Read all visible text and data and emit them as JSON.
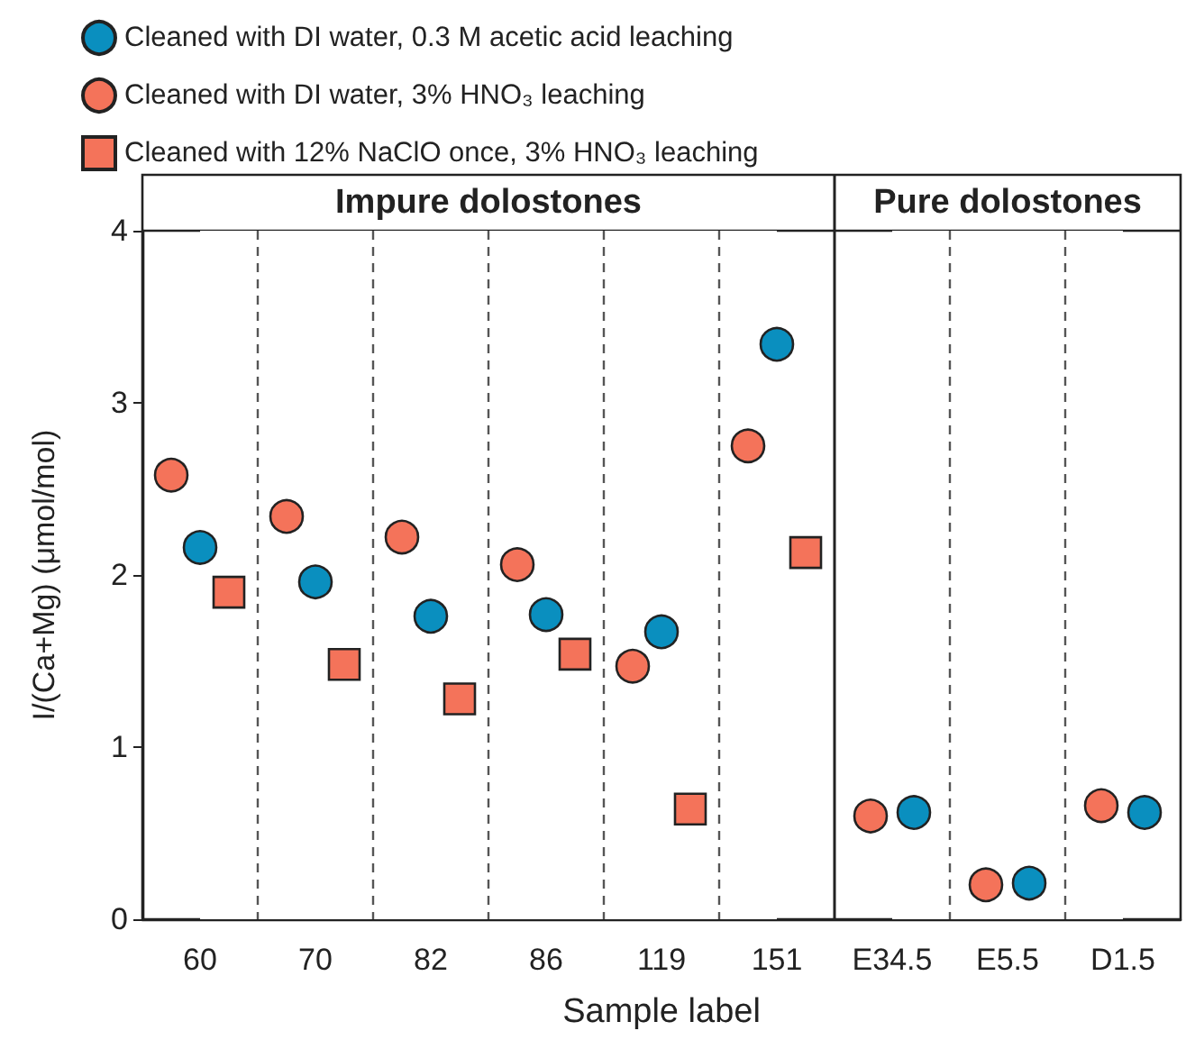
{
  "chart_data": {
    "type": "scatter",
    "ylabel": "I/(Ca+Mg) (μmol/mol)",
    "xlabel": "Sample label",
    "categories": [
      "60",
      "70",
      "82",
      "86",
      "119",
      "151",
      "E34.5",
      "E5.5",
      "D1.5"
    ],
    "series": [
      {
        "name": "Cleaned with DI water, 0.3 M acetic acid leaching",
        "color": "#0a8fbf",
        "marker": "circle",
        "values": [
          2.16,
          1.96,
          1.76,
          1.77,
          1.67,
          3.34,
          0.62,
          0.21,
          0.62
        ]
      },
      {
        "name": "Cleaned with DI water, 3% HNO₃ leaching",
        "color": "#f4735a",
        "marker": "circle",
        "values": [
          2.58,
          2.34,
          2.22,
          2.06,
          1.47,
          2.75,
          0.6,
          0.2,
          0.66
        ]
      },
      {
        "name": "Cleaned with 12% NaClO once, 3% HNO₃ leaching",
        "color": "#f4735a",
        "marker": "square",
        "values": [
          1.9,
          1.48,
          1.28,
          1.54,
          0.64,
          2.13,
          null,
          null,
          null
        ]
      }
    ],
    "ylim": [
      0,
      4
    ],
    "yticks": [
      0,
      1,
      2,
      3,
      4
    ],
    "grid": "x",
    "legend": "top left",
    "bands": [
      {
        "axis": "x",
        "from": "60",
        "to": "151",
        "label": "Impure dolostones",
        "color": "#ffffff"
      },
      {
        "axis": "x",
        "from": "E34.5",
        "to": "D1.5",
        "label": "Pure dolostones",
        "color": "#ffffff"
      }
    ]
  }
}
